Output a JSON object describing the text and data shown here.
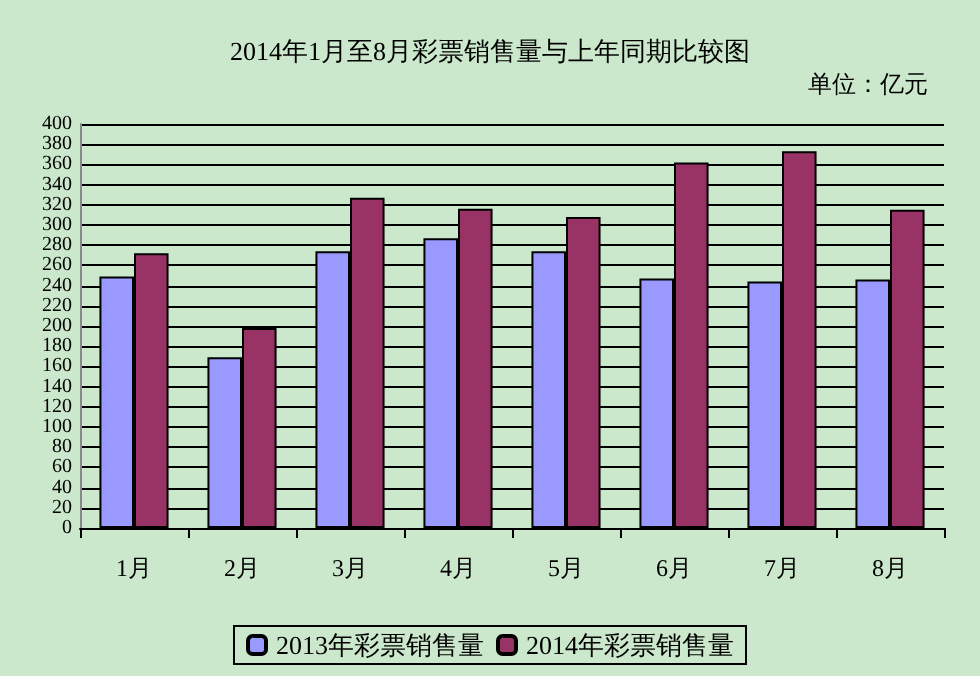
{
  "chart_data": {
    "type": "bar",
    "title": "2014年1月至8月彩票销售量与上年同期比较图",
    "annotations": [
      "单位：亿元"
    ],
    "categories": [
      "1月",
      "2月",
      "3月",
      "4月",
      "5月",
      "6月",
      "7月",
      "8月"
    ],
    "series": [
      {
        "name": "2013年彩票销售量",
        "color": "#9999ff",
        "values": [
          249,
          169,
          274,
          287,
          274,
          247,
          244,
          246
        ]
      },
      {
        "name": "2014年彩票销售量",
        "color": "#993366",
        "values": [
          272,
          198,
          327,
          316,
          308,
          362,
          373,
          315
        ]
      }
    ],
    "ylim": [
      0,
      400
    ],
    "yticks": [
      0,
      20,
      40,
      60,
      80,
      100,
      120,
      140,
      160,
      180,
      200,
      220,
      240,
      260,
      280,
      300,
      320,
      340,
      360,
      380,
      400
    ],
    "grid": "y",
    "legend": "bottom"
  }
}
